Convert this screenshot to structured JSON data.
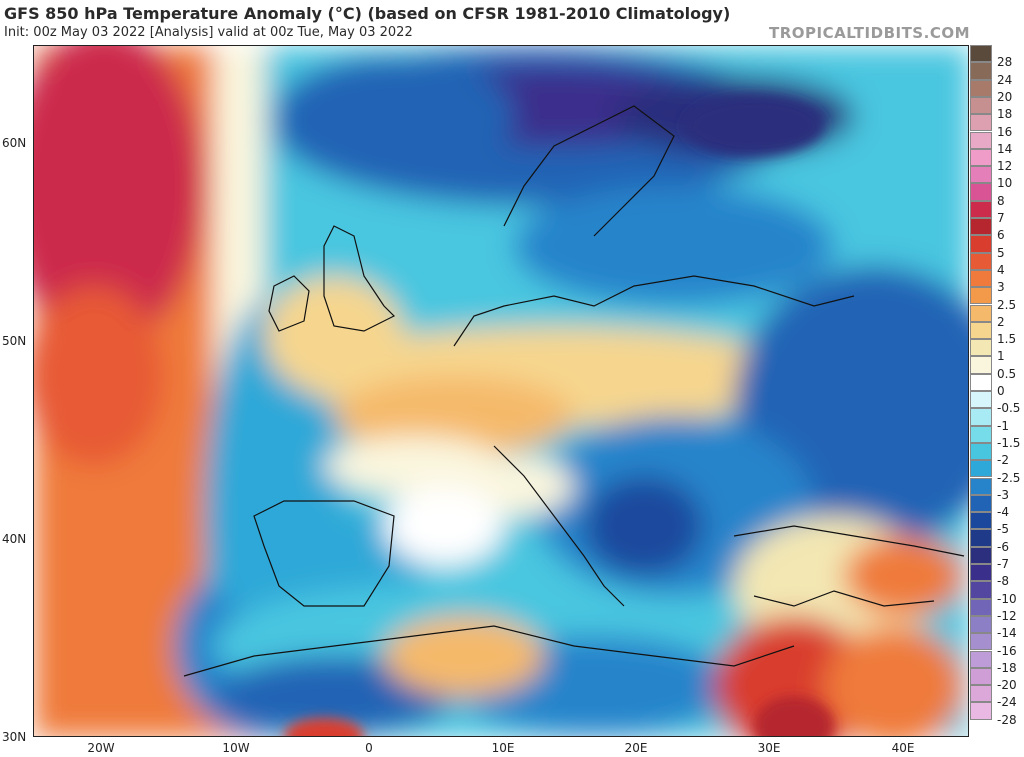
{
  "header": {
    "title": "GFS 850 hPa Temperature Anomaly (°C) (based on CFSR 1981-2010 Climatology)",
    "subtitle": "Init: 00z May 03 2022   [Analysis]   valid at 00z Tue, May 03 2022",
    "brand": "TROPICALTIDBITS.COM"
  },
  "map": {
    "lat_labels": [
      "60N",
      "50N",
      "40N",
      "30N"
    ],
    "lon_labels": [
      "20W",
      "10W",
      "0",
      "10E",
      "20E",
      "30E",
      "40E"
    ]
  },
  "colorbar": {
    "labels": [
      "28",
      "24",
      "20",
      "18",
      "16",
      "14",
      "12",
      "10",
      "8",
      "7",
      "6",
      "5",
      "4",
      "3",
      "2.5",
      "2",
      "1.5",
      "1",
      "0.5",
      "0",
      "-0.5",
      "-1",
      "-1.5",
      "-2",
      "-2.5",
      "-3",
      "-4",
      "-5",
      "-6",
      "-7",
      "-8",
      "-10",
      "-12",
      "-14",
      "-16",
      "-18",
      "-20",
      "-24",
      "-28"
    ],
    "colors": [
      "#5a4a3c",
      "#876a57",
      "#a87a6a",
      "#c79090",
      "#dda0b0",
      "#e8a9c6",
      "#ef9dc8",
      "#e57fb9",
      "#d95494",
      "#cc2b4b",
      "#b5262f",
      "#d93d2e",
      "#e75a36",
      "#ef7a3b",
      "#f39a4a",
      "#f5b96b",
      "#f6d68e",
      "#f3e7b3",
      "#faf6de",
      "#ffffff",
      "#d7f6fb",
      "#a9ebf4",
      "#77dce9",
      "#48c6e0",
      "#2ea8d8",
      "#2784cb",
      "#2163b5",
      "#1b489d",
      "#203a8a",
      "#2b2f7d",
      "#3b2f8c",
      "#5246a0",
      "#7065b6",
      "#8d7fc6",
      "#a58fcf",
      "#bd9cd8",
      "#d09ed6",
      "#dca7d9",
      "#e9b9e4"
    ]
  }
}
